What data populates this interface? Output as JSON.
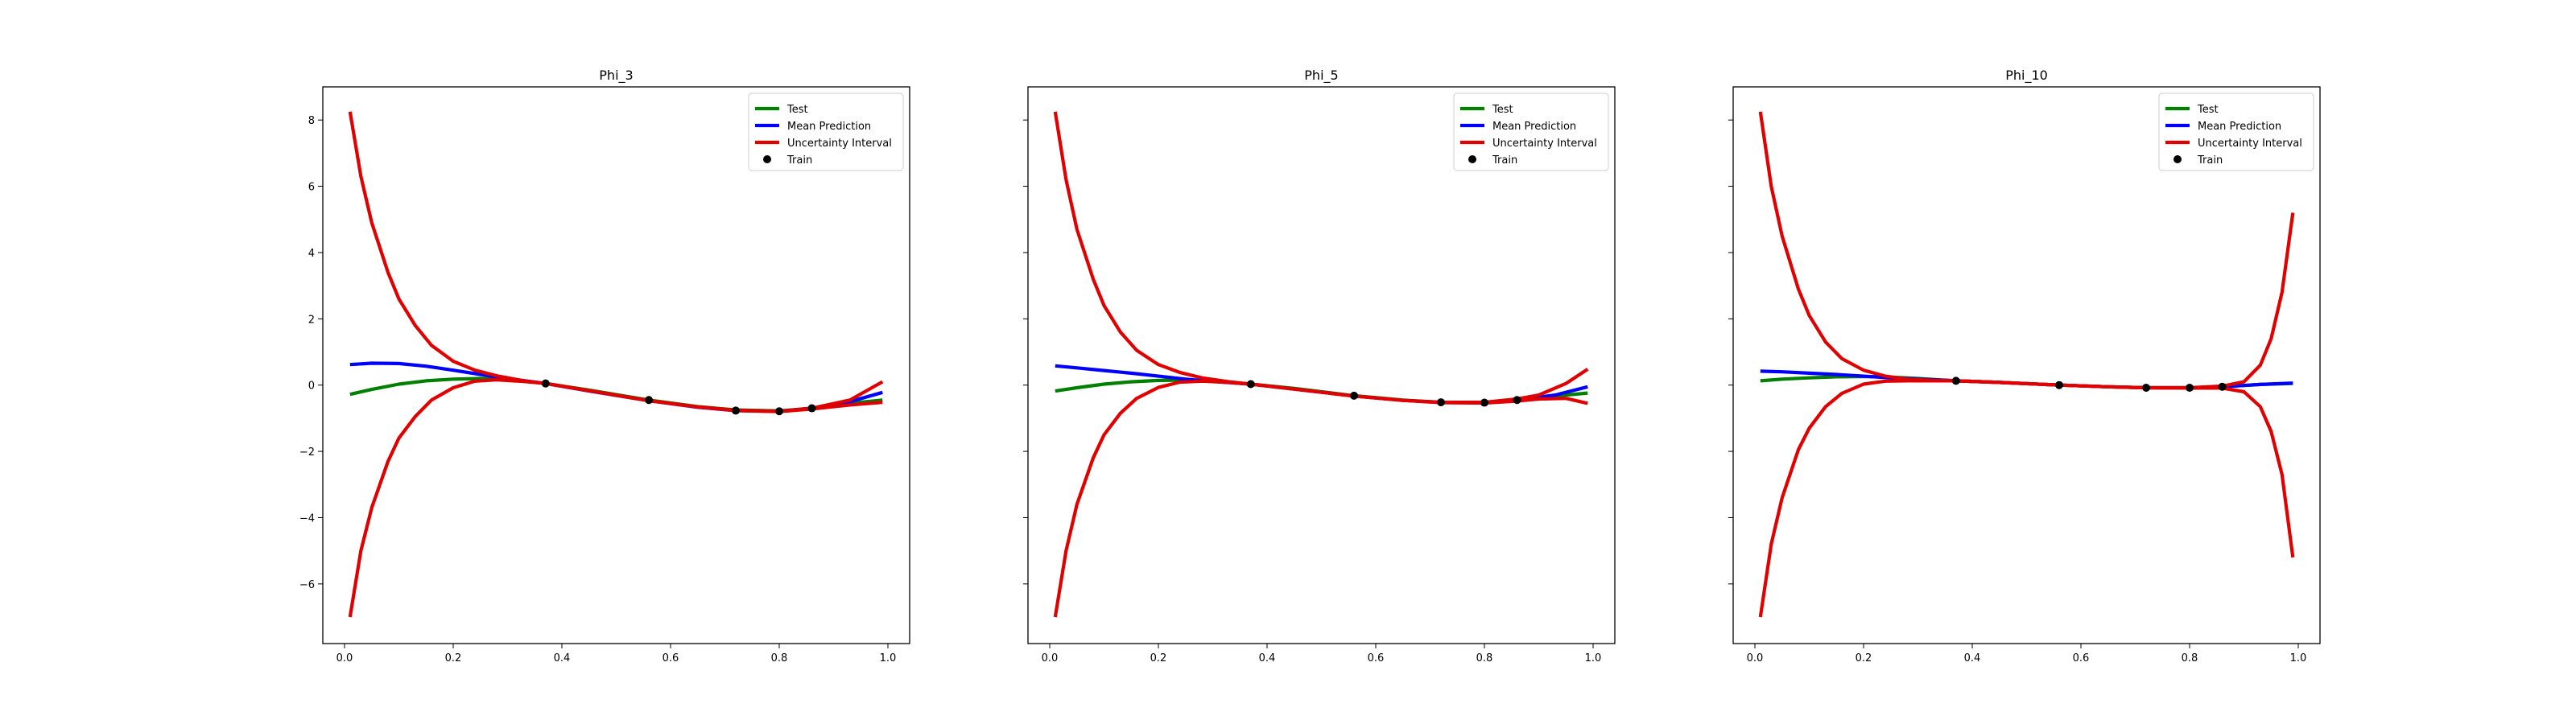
{
  "chart_data": [
    {
      "type": "line",
      "title": "Phi_3",
      "xlim": [
        -0.04,
        1.04
      ],
      "ylim": [
        -7.8,
        9.0
      ],
      "xticks": [
        0.0,
        0.2,
        0.4,
        0.6,
        0.8,
        1.0
      ],
      "xtick_labels": [
        "0.0",
        "0.2",
        "0.4",
        "0.6",
        "0.8",
        "1.0"
      ],
      "yticks": [
        -6,
        -4,
        -2,
        0,
        2,
        4,
        6,
        8
      ],
      "ytick_labels": [
        "−6",
        "−4",
        "−2",
        "0",
        "2",
        "4",
        "6",
        "8"
      ],
      "legend": {
        "location": "upper right",
        "entries": [
          "Test",
          "Mean Prediction",
          "Uncertainty Interval",
          "Train"
        ]
      },
      "series": [
        {
          "name": "Test",
          "color": "#008000",
          "x": [
            0.01,
            0.05,
            0.1,
            0.15,
            0.2,
            0.25,
            0.3,
            0.37,
            0.45,
            0.56,
            0.65,
            0.72,
            0.8,
            0.86,
            0.93,
            0.99
          ],
          "y": [
            -0.28,
            -0.13,
            0.03,
            0.13,
            0.18,
            0.2,
            0.16,
            0.05,
            -0.15,
            -0.45,
            -0.65,
            -0.75,
            -0.78,
            -0.7,
            -0.55,
            -0.45
          ]
        },
        {
          "name": "Mean Prediction",
          "color": "#0000ff",
          "x": [
            0.01,
            0.05,
            0.1,
            0.15,
            0.2,
            0.25,
            0.3,
            0.37,
            0.45,
            0.56,
            0.65,
            0.72,
            0.8,
            0.86,
            0.93,
            0.99
          ],
          "y": [
            0.62,
            0.66,
            0.65,
            0.57,
            0.45,
            0.32,
            0.2,
            0.05,
            -0.18,
            -0.47,
            -0.67,
            -0.77,
            -0.79,
            -0.7,
            -0.5,
            -0.22
          ]
        },
        {
          "name": "Uncertainty Interval",
          "color": "#e00000",
          "x": [
            0.01,
            0.03,
            0.05,
            0.08,
            0.1,
            0.13,
            0.16,
            0.2,
            0.24,
            0.28,
            0.33,
            0.37,
            0.45,
            0.56,
            0.65,
            0.72,
            0.8,
            0.86,
            0.93,
            0.99
          ],
          "y": [
            8.25,
            6.3,
            4.9,
            3.4,
            2.6,
            1.8,
            1.2,
            0.72,
            0.45,
            0.28,
            0.13,
            0.05,
            -0.17,
            -0.47,
            -0.66,
            -0.76,
            -0.79,
            -0.7,
            -0.45,
            0.1
          ]
        },
        {
          "name": "Uncertainty Interval",
          "color": "#e00000",
          "x": [
            0.01,
            0.03,
            0.05,
            0.08,
            0.1,
            0.13,
            0.16,
            0.2,
            0.24,
            0.28,
            0.33,
            0.37,
            0.45,
            0.56,
            0.65,
            0.72,
            0.8,
            0.86,
            0.93,
            0.99
          ],
          "y": [
            -7.0,
            -5.0,
            -3.7,
            -2.3,
            -1.6,
            -0.95,
            -0.45,
            -0.08,
            0.12,
            0.16,
            0.11,
            0.05,
            -0.17,
            -0.47,
            -0.66,
            -0.77,
            -0.8,
            -0.72,
            -0.6,
            -0.52
          ]
        }
      ],
      "train": {
        "name": "Train",
        "color": "#000000",
        "x": [
          0.37,
          0.56,
          0.72,
          0.8,
          0.86
        ],
        "y": [
          0.05,
          -0.45,
          -0.77,
          -0.79,
          -0.7
        ]
      }
    },
    {
      "type": "line",
      "title": "Phi_5",
      "xlim": [
        -0.04,
        1.04
      ],
      "ylim": [
        -7.8,
        9.0
      ],
      "xticks": [
        0.0,
        0.2,
        0.4,
        0.6,
        0.8,
        1.0
      ],
      "xtick_labels": [
        "0.0",
        "0.2",
        "0.4",
        "0.6",
        "0.8",
        "1.0"
      ],
      "yticks": [
        -6,
        -4,
        -2,
        0,
        2,
        4,
        6,
        8
      ],
      "ytick_labels": [
        "",
        "",
        "",
        "",
        "",
        "",
        "",
        ""
      ],
      "legend": {
        "location": "upper right",
        "entries": [
          "Test",
          "Mean Prediction",
          "Uncertainty Interval",
          "Train"
        ]
      },
      "series": [
        {
          "name": "Test",
          "color": "#008000",
          "x": [
            0.01,
            0.05,
            0.1,
            0.15,
            0.2,
            0.25,
            0.3,
            0.37,
            0.45,
            0.56,
            0.65,
            0.72,
            0.8,
            0.86,
            0.93,
            0.99
          ],
          "y": [
            -0.18,
            -0.08,
            0.03,
            0.1,
            0.14,
            0.15,
            0.12,
            0.03,
            -0.1,
            -0.32,
            -0.45,
            -0.52,
            -0.53,
            -0.45,
            -0.33,
            -0.24
          ]
        },
        {
          "name": "Mean Prediction",
          "color": "#0000ff",
          "x": [
            0.01,
            0.05,
            0.1,
            0.15,
            0.2,
            0.25,
            0.3,
            0.37,
            0.45,
            0.56,
            0.65,
            0.72,
            0.8,
            0.86,
            0.93,
            0.99
          ],
          "y": [
            0.58,
            0.52,
            0.44,
            0.36,
            0.27,
            0.18,
            0.11,
            0.03,
            -0.12,
            -0.33,
            -0.46,
            -0.52,
            -0.53,
            -0.45,
            -0.3,
            -0.05
          ]
        },
        {
          "name": "Uncertainty Interval",
          "color": "#e00000",
          "x": [
            0.01,
            0.03,
            0.05,
            0.08,
            0.1,
            0.13,
            0.16,
            0.2,
            0.24,
            0.28,
            0.33,
            0.37,
            0.45,
            0.56,
            0.65,
            0.72,
            0.8,
            0.86,
            0.9,
            0.95,
            0.99
          ],
          "y": [
            8.25,
            6.2,
            4.7,
            3.2,
            2.4,
            1.6,
            1.05,
            0.62,
            0.38,
            0.22,
            0.1,
            0.03,
            -0.12,
            -0.33,
            -0.46,
            -0.52,
            -0.52,
            -0.42,
            -0.3,
            0.05,
            0.48
          ]
        },
        {
          "name": "Uncertainty Interval",
          "color": "#e00000",
          "x": [
            0.01,
            0.03,
            0.05,
            0.08,
            0.1,
            0.13,
            0.16,
            0.2,
            0.24,
            0.28,
            0.33,
            0.37,
            0.45,
            0.56,
            0.65,
            0.72,
            0.8,
            0.86,
            0.9,
            0.95,
            0.99
          ],
          "y": [
            -7.0,
            -5.0,
            -3.6,
            -2.2,
            -1.5,
            -0.85,
            -0.4,
            -0.07,
            0.09,
            0.12,
            0.08,
            0.03,
            -0.12,
            -0.33,
            -0.46,
            -0.53,
            -0.54,
            -0.48,
            -0.42,
            -0.4,
            -0.55
          ]
        }
      ],
      "train": {
        "name": "Train",
        "color": "#000000",
        "x": [
          0.37,
          0.56,
          0.72,
          0.8,
          0.86
        ],
        "y": [
          0.03,
          -0.32,
          -0.52,
          -0.53,
          -0.45
        ]
      }
    },
    {
      "type": "line",
      "title": "Phi_10",
      "xlim": [
        -0.04,
        1.04
      ],
      "ylim": [
        -7.8,
        9.0
      ],
      "xticks": [
        0.0,
        0.2,
        0.4,
        0.6,
        0.8,
        1.0
      ],
      "xtick_labels": [
        "0.0",
        "0.2",
        "0.4",
        "0.6",
        "0.8",
        "1.0"
      ],
      "yticks": [
        -6,
        -4,
        -2,
        0,
        2,
        4,
        6,
        8
      ],
      "ytick_labels": [
        "",
        "",
        "",
        "",
        "",
        "",
        "",
        ""
      ],
      "legend": {
        "location": "upper right",
        "entries": [
          "Test",
          "Mean Prediction",
          "Uncertainty Interval",
          "Train"
        ]
      },
      "series": [
        {
          "name": "Test",
          "color": "#008000",
          "x": [
            0.01,
            0.05,
            0.1,
            0.15,
            0.2,
            0.25,
            0.3,
            0.37,
            0.45,
            0.56,
            0.65,
            0.72,
            0.8,
            0.86,
            0.93,
            0.99
          ],
          "y": [
            0.13,
            0.18,
            0.22,
            0.25,
            0.26,
            0.24,
            0.2,
            0.13,
            0.08,
            0.0,
            -0.05,
            -0.08,
            -0.08,
            -0.05,
            0.02,
            0.05
          ]
        },
        {
          "name": "Mean Prediction",
          "color": "#0000ff",
          "x": [
            0.01,
            0.05,
            0.1,
            0.15,
            0.2,
            0.25,
            0.3,
            0.37,
            0.45,
            0.56,
            0.65,
            0.72,
            0.8,
            0.86,
            0.93,
            0.99
          ],
          "y": [
            0.42,
            0.4,
            0.36,
            0.32,
            0.27,
            0.22,
            0.18,
            0.13,
            0.08,
            0.0,
            -0.05,
            -0.08,
            -0.08,
            -0.05,
            0.02,
            0.06
          ]
        },
        {
          "name": "Uncertainty Interval",
          "color": "#e00000",
          "x": [
            0.01,
            0.03,
            0.05,
            0.08,
            0.1,
            0.13,
            0.16,
            0.2,
            0.24,
            0.28,
            0.33,
            0.37,
            0.45,
            0.56,
            0.65,
            0.72,
            0.8,
            0.86,
            0.9,
            0.93,
            0.95,
            0.97,
            0.99
          ],
          "y": [
            8.25,
            6.0,
            4.5,
            2.9,
            2.1,
            1.3,
            0.8,
            0.45,
            0.27,
            0.18,
            0.14,
            0.13,
            0.08,
            0.0,
            -0.05,
            -0.08,
            -0.08,
            -0.03,
            0.1,
            0.6,
            1.4,
            2.8,
            5.2
          ]
        },
        {
          "name": "Uncertainty Interval",
          "color": "#e00000",
          "x": [
            0.01,
            0.03,
            0.05,
            0.08,
            0.1,
            0.13,
            0.16,
            0.2,
            0.24,
            0.28,
            0.33,
            0.37,
            0.45,
            0.56,
            0.65,
            0.72,
            0.8,
            0.86,
            0.9,
            0.93,
            0.95,
            0.97,
            0.99
          ],
          "y": [
            -7.0,
            -4.8,
            -3.4,
            -1.95,
            -1.3,
            -0.65,
            -0.25,
            0.03,
            0.12,
            0.13,
            0.13,
            0.13,
            0.08,
            0.0,
            -0.05,
            -0.08,
            -0.09,
            -0.09,
            -0.2,
            -0.65,
            -1.4,
            -2.7,
            -5.2
          ]
        }
      ],
      "train": {
        "name": "Train",
        "color": "#000000",
        "x": [
          0.37,
          0.56,
          0.72,
          0.8,
          0.86
        ],
        "y": [
          0.13,
          0.0,
          -0.08,
          -0.08,
          -0.05
        ]
      }
    }
  ]
}
